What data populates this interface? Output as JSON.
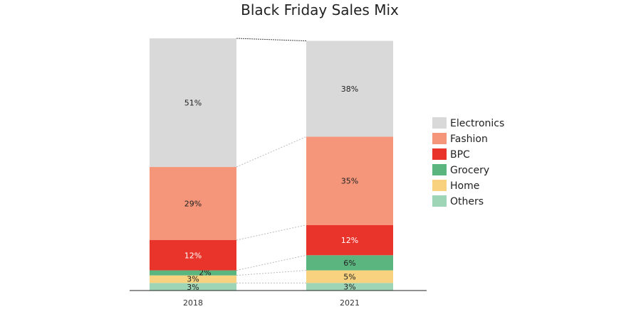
{
  "chart_data": {
    "type": "bar",
    "stacked": true,
    "title": "Black Friday Sales Mix",
    "categories": [
      "2018",
      "2021"
    ],
    "series": [
      {
        "name": "Others",
        "values": [
          3,
          3
        ],
        "labels": [
          "3%",
          "3%"
        ],
        "color": "#9dd5b6",
        "label_color": "#222222"
      },
      {
        "name": "Home",
        "values": [
          3,
          5
        ],
        "labels": [
          "3%",
          "5%"
        ],
        "color": "#f8d27e",
        "label_color": "#222222"
      },
      {
        "name": "Grocery",
        "values": [
          2,
          6
        ],
        "labels": [
          "2%",
          "6%"
        ],
        "color": "#5bb57f",
        "label_color": "#222222"
      },
      {
        "name": "BPC",
        "values": [
          12,
          12
        ],
        "labels": [
          "12%",
          "12%"
        ],
        "color": "#e8342b",
        "label_color": "#ffffff"
      },
      {
        "name": "Fashion",
        "values": [
          29,
          35
        ],
        "labels": [
          "29%",
          "35%"
        ],
        "color": "#f5967a",
        "label_color": "#222222"
      },
      {
        "name": "Electronics",
        "values": [
          51,
          38
        ],
        "labels": [
          "51%",
          "38%"
        ],
        "color": "#d9d9d9",
        "label_color": "#222222"
      }
    ],
    "legend_order": [
      "Electronics",
      "Fashion",
      "BPC",
      "Grocery",
      "Home",
      "Others"
    ],
    "ylim": [
      0,
      100
    ],
    "grid": false,
    "legend_position": "right",
    "connector_lines": true
  }
}
